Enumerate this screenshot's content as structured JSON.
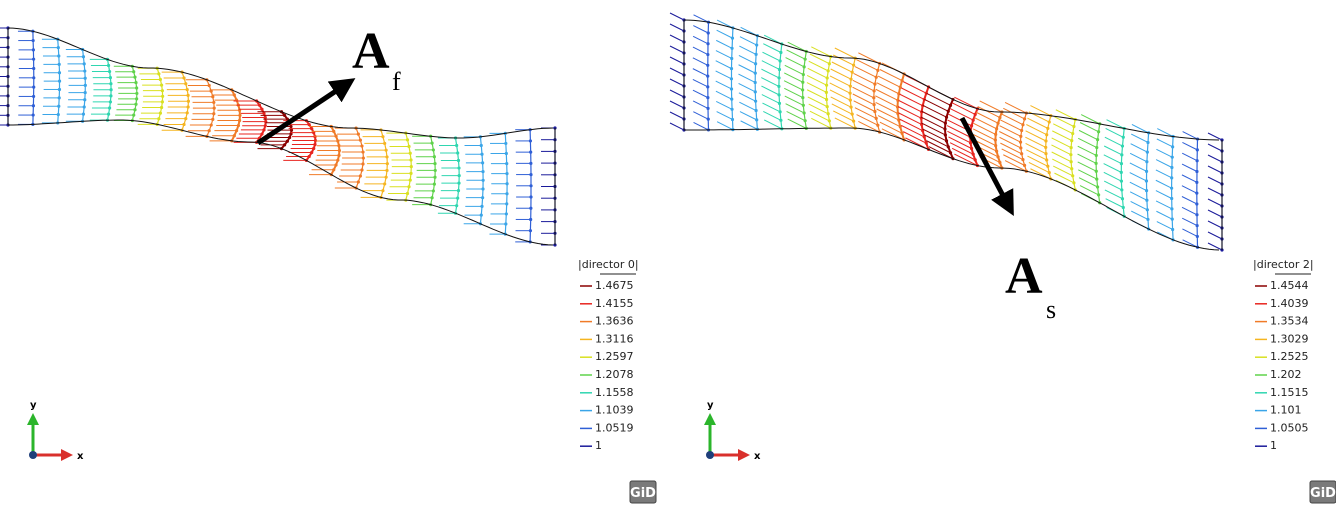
{
  "panels": [
    {
      "label": "A",
      "subscript": "f",
      "legend_title": "|director 0|",
      "legend": [
        {
          "label": "1.4675",
          "color": "#8b0000"
        },
        {
          "label": "1.4155",
          "color": "#e8251f"
        },
        {
          "label": "1.3636",
          "color": "#f07b28"
        },
        {
          "label": "1.3116",
          "color": "#f5b520"
        },
        {
          "label": "1.2597",
          "color": "#d9e021"
        },
        {
          "label": "1.2078",
          "color": "#5fd24a"
        },
        {
          "label": "1.1558",
          "color": "#2fd6b0"
        },
        {
          "label": "1.1039",
          "color": "#3aa5e8"
        },
        {
          "label": "1.0519",
          "color": "#2f5fd6"
        },
        {
          "label": "1",
          "color": "#1a1a9a"
        }
      ],
      "axis_x": "x",
      "axis_y": "y",
      "logo": "GiD"
    },
    {
      "label": "A",
      "subscript": "s",
      "legend_title": "|director 2|",
      "legend": [
        {
          "label": "1.4544",
          "color": "#8b0000"
        },
        {
          "label": "1.4039",
          "color": "#e8251f"
        },
        {
          "label": "1.3534",
          "color": "#f07b28"
        },
        {
          "label": "1.3029",
          "color": "#f5b520"
        },
        {
          "label": "1.2525",
          "color": "#d9e021"
        },
        {
          "label": "1.202",
          "color": "#5fd24a"
        },
        {
          "label": "1.1515",
          "color": "#2fd6b0"
        },
        {
          "label": "1.101",
          "color": "#3aa5e8"
        },
        {
          "label": "1.0505",
          "color": "#2f5fd6"
        },
        {
          "label": "1",
          "color": "#1a1a9a"
        }
      ],
      "axis_x": "x",
      "axis_y": "y",
      "logo": "GiD"
    }
  ]
}
